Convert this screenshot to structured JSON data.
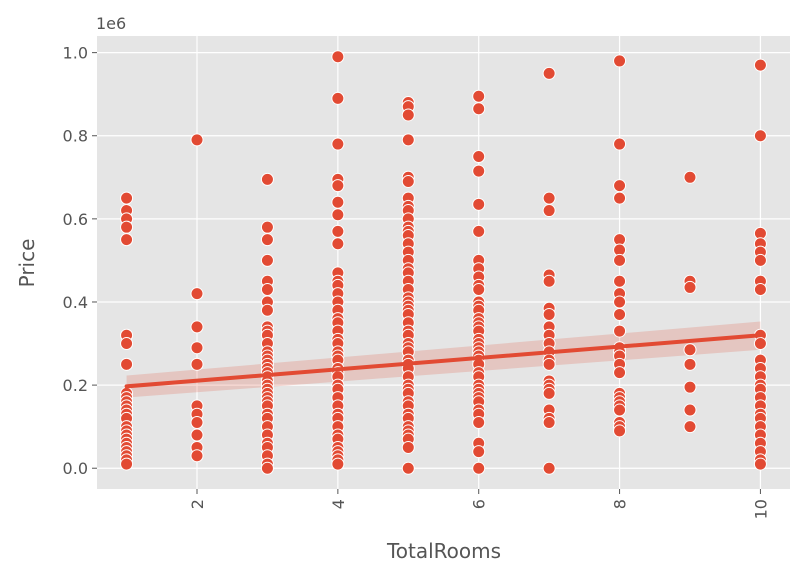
{
  "chart_data": {
    "type": "scatter",
    "title": "",
    "xlabel": "TotalRooms",
    "ylabel": "Price",
    "y_offset_label": "1e6",
    "xlim": [
      0.58,
      10.42
    ],
    "ylim": [
      -0.05,
      1.04
    ],
    "x_ticks": [
      2,
      4,
      6,
      8,
      10
    ],
    "x_tick_labels": [
      "2",
      "4",
      "6",
      "8",
      "10"
    ],
    "x_tick_rotation": 90,
    "y_ticks": [
      0.0,
      0.2,
      0.4,
      0.6,
      0.8,
      1.0
    ],
    "y_tick_labels": [
      "0.0",
      "0.2",
      "0.4",
      "0.6",
      "0.8",
      "1.0"
    ],
    "grid": true,
    "style": "ggplot",
    "colors": {
      "points": "#E24A33",
      "point_edge": "#ffffff",
      "regression": "#E24A33",
      "confidence_band": "#E24A33",
      "panel_background": "#E5E5E5",
      "grid": "#ffffff",
      "text": "#555555"
    },
    "regression": {
      "x": [
        1,
        10
      ],
      "y": [
        0.197,
        0.32
      ],
      "ci_lower": [
        0.17,
        0.285
      ],
      "ci_upper": [
        0.223,
        0.353
      ]
    },
    "points": [
      {
        "x": 1,
        "y": [
          0.65,
          0.62,
          0.6,
          0.58,
          0.55,
          0.32,
          0.3,
          0.25,
          0.18,
          0.17,
          0.16,
          0.15,
          0.14,
          0.13,
          0.12,
          0.1,
          0.09,
          0.08,
          0.07,
          0.06,
          0.05,
          0.04,
          0.03,
          0.02,
          0.01
        ]
      },
      {
        "x": 2,
        "y": [
          0.79,
          0.42,
          0.34,
          0.29,
          0.25,
          0.15,
          0.13,
          0.11,
          0.08,
          0.05,
          0.03
        ]
      },
      {
        "x": 3,
        "y": [
          0.695,
          0.58,
          0.55,
          0.5,
          0.45,
          0.43,
          0.4,
          0.38,
          0.34,
          0.33,
          0.32,
          0.3,
          0.28,
          0.27,
          0.26,
          0.25,
          0.24,
          0.23,
          0.22,
          0.21,
          0.2,
          0.19,
          0.18,
          0.17,
          0.16,
          0.15,
          0.13,
          0.12,
          0.1,
          0.08,
          0.06,
          0.05,
          0.03,
          0.01,
          0.0
        ]
      },
      {
        "x": 4,
        "y": [
          0.99,
          0.89,
          0.78,
          0.695,
          0.68,
          0.64,
          0.61,
          0.57,
          0.54,
          0.47,
          0.45,
          0.44,
          0.42,
          0.4,
          0.38,
          0.36,
          0.35,
          0.33,
          0.31,
          0.3,
          0.28,
          0.27,
          0.26,
          0.24,
          0.23,
          0.22,
          0.2,
          0.19,
          0.17,
          0.15,
          0.13,
          0.12,
          0.1,
          0.08,
          0.07,
          0.05,
          0.04,
          0.03,
          0.02,
          0.01
        ]
      },
      {
        "x": 5,
        "y": [
          0.88,
          0.87,
          0.85,
          0.79,
          0.7,
          0.69,
          0.65,
          0.63,
          0.62,
          0.6,
          0.58,
          0.57,
          0.56,
          0.54,
          0.52,
          0.5,
          0.48,
          0.47,
          0.45,
          0.43,
          0.41,
          0.4,
          0.39,
          0.38,
          0.37,
          0.35,
          0.33,
          0.32,
          0.3,
          0.29,
          0.28,
          0.26,
          0.25,
          0.24,
          0.22,
          0.2,
          0.19,
          0.18,
          0.16,
          0.15,
          0.13,
          0.12,
          0.1,
          0.09,
          0.08,
          0.07,
          0.05,
          0.0
        ]
      },
      {
        "x": 6,
        "y": [
          0.895,
          0.865,
          0.75,
          0.715,
          0.635,
          0.57,
          0.5,
          0.48,
          0.46,
          0.44,
          0.43,
          0.4,
          0.39,
          0.38,
          0.36,
          0.35,
          0.34,
          0.33,
          0.31,
          0.3,
          0.29,
          0.28,
          0.27,
          0.26,
          0.25,
          0.23,
          0.22,
          0.2,
          0.19,
          0.18,
          0.17,
          0.16,
          0.14,
          0.13,
          0.11,
          0.06,
          0.04,
          0.0
        ]
      },
      {
        "x": 7,
        "y": [
          0.95,
          0.65,
          0.62,
          0.465,
          0.45,
          0.385,
          0.37,
          0.34,
          0.32,
          0.3,
          0.28,
          0.26,
          0.25,
          0.21,
          0.2,
          0.19,
          0.18,
          0.14,
          0.12,
          0.11,
          0.0
        ]
      },
      {
        "x": 8,
        "y": [
          0.98,
          0.78,
          0.68,
          0.65,
          0.55,
          0.525,
          0.5,
          0.45,
          0.42,
          0.4,
          0.37,
          0.33,
          0.29,
          0.28,
          0.27,
          0.25,
          0.23,
          0.18,
          0.17,
          0.16,
          0.15,
          0.14,
          0.11,
          0.1,
          0.09
        ]
      },
      {
        "x": 9,
        "y": [
          0.7,
          0.45,
          0.435,
          0.285,
          0.25,
          0.195,
          0.14,
          0.1
        ]
      },
      {
        "x": 10,
        "y": [
          0.97,
          0.8,
          0.565,
          0.54,
          0.52,
          0.5,
          0.45,
          0.43,
          0.32,
          0.3,
          0.26,
          0.24,
          0.22,
          0.2,
          0.19,
          0.17,
          0.15,
          0.13,
          0.12,
          0.1,
          0.08,
          0.06,
          0.04,
          0.02,
          0.01
        ]
      }
    ]
  }
}
